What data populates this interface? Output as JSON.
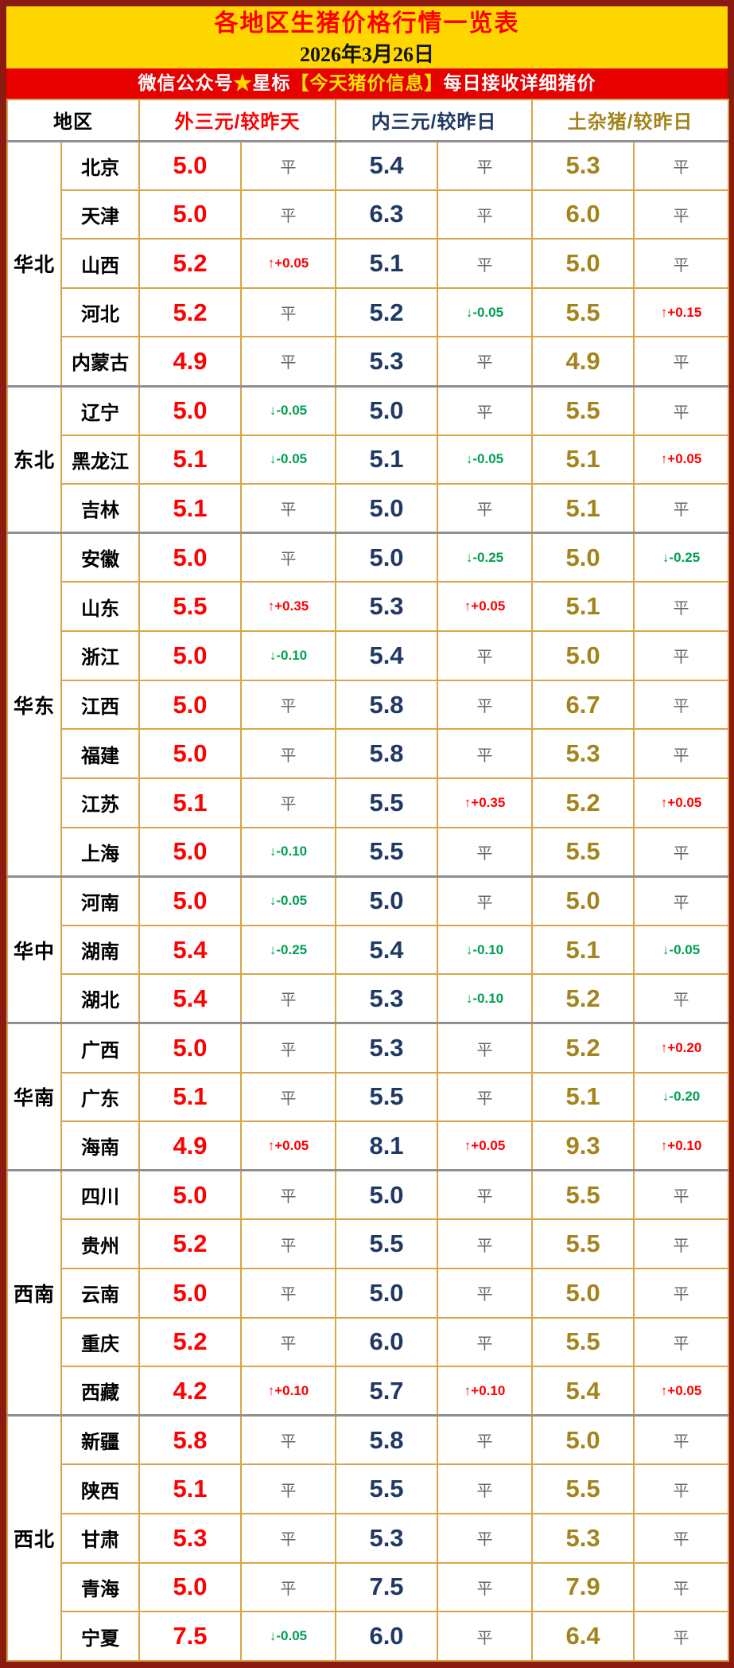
{
  "page": {
    "title": "各地区生猪价格行情一览表",
    "date": "2026年3月26日",
    "banner": {
      "prefix": "微信公众号",
      "star": "★",
      "star_label": "星标",
      "highlight": "【今天猪价信息】",
      "suffix": "每日接收详细猪价"
    }
  },
  "table": {
    "header": {
      "region": "地区",
      "col_wsy": "外三元/较昨天",
      "col_nsy": "内三元/较昨日",
      "col_tzz": "土杂猪/较昨日"
    },
    "groups": [
      {
        "region": "华北",
        "rows": [
          {
            "province": "北京",
            "wsy": "5.0",
            "wsy_chg": "平",
            "nsy": "5.4",
            "nsy_chg": "平",
            "tzz": "5.3",
            "tzz_chg": "平"
          },
          {
            "province": "天津",
            "wsy": "5.0",
            "wsy_chg": "平",
            "nsy": "6.3",
            "nsy_chg": "平",
            "tzz": "6.0",
            "tzz_chg": "平"
          },
          {
            "province": "山西",
            "wsy": "5.2",
            "wsy_chg": "↑+0.05",
            "nsy": "5.1",
            "nsy_chg": "平",
            "tzz": "5.0",
            "tzz_chg": "平"
          },
          {
            "province": "河北",
            "wsy": "5.2",
            "wsy_chg": "平",
            "nsy": "5.2",
            "nsy_chg": "↓-0.05",
            "tzz": "5.5",
            "tzz_chg": "↑+0.15"
          },
          {
            "province": "内蒙古",
            "wsy": "4.9",
            "wsy_chg": "平",
            "nsy": "5.3",
            "nsy_chg": "平",
            "tzz": "4.9",
            "tzz_chg": "平"
          }
        ]
      },
      {
        "region": "东北",
        "rows": [
          {
            "province": "辽宁",
            "wsy": "5.0",
            "wsy_chg": "↓-0.05",
            "nsy": "5.0",
            "nsy_chg": "平",
            "tzz": "5.5",
            "tzz_chg": "平"
          },
          {
            "province": "黑龙江",
            "wsy": "5.1",
            "wsy_chg": "↓-0.05",
            "nsy": "5.1",
            "nsy_chg": "↓-0.05",
            "tzz": "5.1",
            "tzz_chg": "↑+0.05"
          },
          {
            "province": "吉林",
            "wsy": "5.1",
            "wsy_chg": "平",
            "nsy": "5.0",
            "nsy_chg": "平",
            "tzz": "5.1",
            "tzz_chg": "平"
          }
        ]
      },
      {
        "region": "华东",
        "rows": [
          {
            "province": "安徽",
            "wsy": "5.0",
            "wsy_chg": "平",
            "nsy": "5.0",
            "nsy_chg": "↓-0.25",
            "tzz": "5.0",
            "tzz_chg": "↓-0.25"
          },
          {
            "province": "山东",
            "wsy": "5.5",
            "wsy_chg": "↑+0.35",
            "nsy": "5.3",
            "nsy_chg": "↑+0.05",
            "tzz": "5.1",
            "tzz_chg": "平"
          },
          {
            "province": "浙江",
            "wsy": "5.0",
            "wsy_chg": "↓-0.10",
            "nsy": "5.4",
            "nsy_chg": "平",
            "tzz": "5.0",
            "tzz_chg": "平"
          },
          {
            "province": "江西",
            "wsy": "5.0",
            "wsy_chg": "平",
            "nsy": "5.8",
            "nsy_chg": "平",
            "tzz": "6.7",
            "tzz_chg": "平"
          },
          {
            "province": "福建",
            "wsy": "5.0",
            "wsy_chg": "平",
            "nsy": "5.8",
            "nsy_chg": "平",
            "tzz": "5.3",
            "tzz_chg": "平"
          },
          {
            "province": "江苏",
            "wsy": "5.1",
            "wsy_chg": "平",
            "nsy": "5.5",
            "nsy_chg": "↑+0.35",
            "tzz": "5.2",
            "tzz_chg": "↑+0.05"
          },
          {
            "province": "上海",
            "wsy": "5.0",
            "wsy_chg": "↓-0.10",
            "nsy": "5.5",
            "nsy_chg": "平",
            "tzz": "5.5",
            "tzz_chg": "平"
          }
        ]
      },
      {
        "region": "华中",
        "rows": [
          {
            "province": "河南",
            "wsy": "5.0",
            "wsy_chg": "↓-0.05",
            "nsy": "5.0",
            "nsy_chg": "平",
            "tzz": "5.0",
            "tzz_chg": "平"
          },
          {
            "province": "湖南",
            "wsy": "5.4",
            "wsy_chg": "↓-0.25",
            "nsy": "5.4",
            "nsy_chg": "↓-0.10",
            "tzz": "5.1",
            "tzz_chg": "↓-0.05"
          },
          {
            "province": "湖北",
            "wsy": "5.4",
            "wsy_chg": "平",
            "nsy": "5.3",
            "nsy_chg": "↓-0.10",
            "tzz": "5.2",
            "tzz_chg": "平"
          }
        ]
      },
      {
        "region": "华南",
        "rows": [
          {
            "province": "广西",
            "wsy": "5.0",
            "wsy_chg": "平",
            "nsy": "5.3",
            "nsy_chg": "平",
            "tzz": "5.2",
            "tzz_chg": "↑+0.20"
          },
          {
            "province": "广东",
            "wsy": "5.1",
            "wsy_chg": "平",
            "nsy": "5.5",
            "nsy_chg": "平",
            "tzz": "5.1",
            "tzz_chg": "↓-0.20"
          },
          {
            "province": "海南",
            "wsy": "4.9",
            "wsy_chg": "↑+0.05",
            "nsy": "8.1",
            "nsy_chg": "↑+0.05",
            "tzz": "9.3",
            "tzz_chg": "↑+0.10"
          }
        ]
      },
      {
        "region": "西南",
        "rows": [
          {
            "province": "四川",
            "wsy": "5.0",
            "wsy_chg": "平",
            "nsy": "5.0",
            "nsy_chg": "平",
            "tzz": "5.5",
            "tzz_chg": "平"
          },
          {
            "province": "贵州",
            "wsy": "5.2",
            "wsy_chg": "平",
            "nsy": "5.5",
            "nsy_chg": "平",
            "tzz": "5.5",
            "tzz_chg": "平"
          },
          {
            "province": "云南",
            "wsy": "5.0",
            "wsy_chg": "平",
            "nsy": "5.0",
            "nsy_chg": "平",
            "tzz": "5.0",
            "tzz_chg": "平"
          },
          {
            "province": "重庆",
            "wsy": "5.2",
            "wsy_chg": "平",
            "nsy": "6.0",
            "nsy_chg": "平",
            "tzz": "5.5",
            "tzz_chg": "平"
          },
          {
            "province": "西藏",
            "wsy": "4.2",
            "wsy_chg": "↑+0.10",
            "nsy": "5.7",
            "nsy_chg": "↑+0.10",
            "tzz": "5.4",
            "tzz_chg": "↑+0.05"
          }
        ]
      },
      {
        "region": "西北",
        "rows": [
          {
            "province": "新疆",
            "wsy": "5.8",
            "wsy_chg": "平",
            "nsy": "5.8",
            "nsy_chg": "平",
            "tzz": "5.0",
            "tzz_chg": "平"
          },
          {
            "province": "陕西",
            "wsy": "5.1",
            "wsy_chg": "平",
            "nsy": "5.5",
            "nsy_chg": "平",
            "tzz": "5.5",
            "tzz_chg": "平"
          },
          {
            "province": "甘肃",
            "wsy": "5.3",
            "wsy_chg": "平",
            "nsy": "5.3",
            "nsy_chg": "平",
            "tzz": "5.3",
            "tzz_chg": "平"
          },
          {
            "province": "青海",
            "wsy": "5.0",
            "wsy_chg": "平",
            "nsy": "7.5",
            "nsy_chg": "平",
            "tzz": "7.9",
            "tzz_chg": "平"
          },
          {
            "province": "宁夏",
            "wsy": "7.5",
            "wsy_chg": "↓-0.05",
            "nsy": "6.0",
            "nsy_chg": "平",
            "tzz": "6.4",
            "tzz_chg": "平"
          }
        ]
      }
    ]
  },
  "colors": {
    "outer_border": "#8b1a10",
    "masthead_bg": "#ffd700",
    "title_text": "#ff0000",
    "banner_bg": "#e60000",
    "banner_text": "#ffffff",
    "banner_highlight": "#ffe400",
    "grid_line": "#d9a548",
    "group_separator": "#8f8f8f",
    "wsy_price": "#ff0000",
    "nsy_price": "#1f3864",
    "tzz_price": "#a3841c",
    "change_up": "#ff0000",
    "change_down": "#00a050",
    "change_flat": "#666666"
  }
}
